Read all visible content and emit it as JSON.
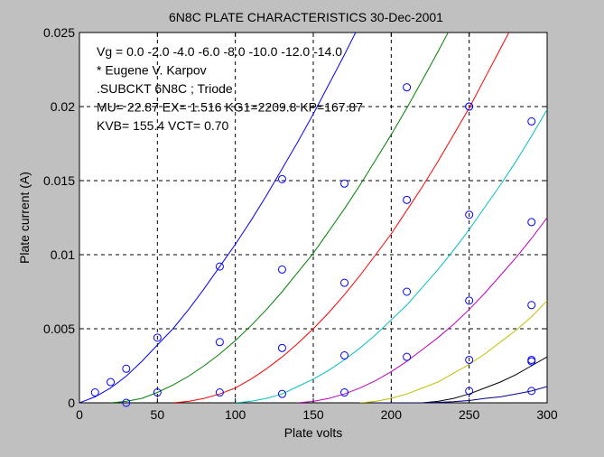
{
  "chart_data": {
    "type": "line",
    "title": "6N8C PLATE CHARACTERISTICS  30-Dec-2001",
    "xlabel": "Plate volts",
    "ylabel": "Plate current (A)",
    "xlim": [
      0,
      300
    ],
    "ylim": [
      0,
      0.025
    ],
    "xticks": [
      0,
      50,
      100,
      150,
      200,
      250,
      300
    ],
    "yticks": [
      0,
      0.005,
      0.01,
      0.015,
      0.02,
      0.025
    ],
    "xtick_labels": [
      "0",
      "50",
      "100",
      "150",
      "200",
      "250",
      "300"
    ],
    "ytick_labels": [
      "0",
      "0.005",
      "0.01",
      "0.015",
      "0.02",
      "0.025"
    ],
    "grid": true,
    "annotations": [
      "Vg =   0.0  -2.0  -4.0  -6.0  -8.0 -10.0 -12.0 -14.0",
      "* Eugene V. Karpov",
      ".SUBCKT 6N8C ;  Triode",
      "MU= 22.87  EX= 1.516  KG1=2209.8  KP=167.87",
      "KVB= 155.4  VCT=  0.70"
    ],
    "series": [
      {
        "color": "#0000ff",
        "x": [
          0,
          10,
          20,
          30,
          40,
          50,
          60,
          70,
          80,
          90,
          100,
          110,
          120,
          130,
          140,
          150,
          160,
          170,
          180,
          190
        ],
        "y": [
          0,
          0.0004,
          0.001,
          0.0018,
          0.0028,
          0.0039,
          0.005,
          0.0063,
          0.0077,
          0.0092,
          0.0107,
          0.0123,
          0.014,
          0.0158,
          0.0176,
          0.0195,
          0.0215,
          0.0235,
          0.0256,
          0.0275
        ]
      },
      {
        "color": "#008000",
        "x": [
          20,
          30,
          40,
          50,
          60,
          70,
          80,
          90,
          100,
          110,
          120,
          130,
          140,
          150,
          160,
          170,
          180,
          190,
          200,
          210,
          220,
          230,
          240
        ],
        "y": [
          0,
          0.0001,
          0.0003,
          0.0007,
          0.0012,
          0.0018,
          0.0025,
          0.0033,
          0.0042,
          0.0052,
          0.0063,
          0.0075,
          0.0088,
          0.0101,
          0.0116,
          0.0131,
          0.0147,
          0.0164,
          0.0181,
          0.0199,
          0.0218,
          0.0237,
          0.0257
        ]
      },
      {
        "color": "#ff0000",
        "x": [
          60,
          70,
          80,
          90,
          100,
          110,
          120,
          130,
          140,
          150,
          160,
          170,
          180,
          190,
          200,
          210,
          220,
          230,
          240,
          250,
          260,
          270,
          280
        ],
        "y": [
          0,
          0.0001,
          0.0003,
          0.0006,
          0.001,
          0.0016,
          0.0023,
          0.0031,
          0.004,
          0.005,
          0.0061,
          0.0073,
          0.0086,
          0.01,
          0.0114,
          0.013,
          0.0146,
          0.0163,
          0.0181,
          0.0199,
          0.0219,
          0.0239,
          0.0259
        ]
      },
      {
        "color": "#00bfbf",
        "x": [
          100,
          110,
          120,
          130,
          140,
          150,
          160,
          170,
          180,
          190,
          200,
          210,
          220,
          230,
          240,
          250,
          260,
          270,
          280,
          290,
          300
        ],
        "y": [
          0,
          0.0001,
          0.0003,
          0.0006,
          0.0011,
          0.0016,
          0.0022,
          0.0029,
          0.0037,
          0.0046,
          0.0056,
          0.0066,
          0.0078,
          0.009,
          0.0103,
          0.0117,
          0.0132,
          0.0147,
          0.0163,
          0.018,
          0.0198
        ]
      },
      {
        "color": "#bf00bf",
        "x": [
          140,
          150,
          160,
          170,
          180,
          190,
          200,
          210,
          220,
          230,
          240,
          250,
          260,
          270,
          280,
          290,
          300
        ],
        "y": [
          0,
          0.0001,
          0.0003,
          0.0006,
          0.001,
          0.0015,
          0.0021,
          0.0028,
          0.0036,
          0.0044,
          0.0053,
          0.0063,
          0.0074,
          0.0086,
          0.0098,
          0.0111,
          0.0125
        ]
      },
      {
        "color": "#bfbf00",
        "x": [
          180,
          190,
          200,
          210,
          220,
          230,
          240,
          250,
          260,
          270,
          280,
          290,
          300
        ],
        "y": [
          0,
          0.0001,
          0.0003,
          0.0006,
          0.001,
          0.0014,
          0.002,
          0.0026,
          0.0033,
          0.0041,
          0.0049,
          0.0058,
          0.0069
        ]
      },
      {
        "color": "#000000",
        "x": [
          220,
          230,
          240,
          250,
          260,
          270,
          280,
          290,
          300
        ],
        "y": [
          0,
          0.0001,
          0.0003,
          0.0006,
          0.001,
          0.0014,
          0.0019,
          0.0025,
          0.0031
        ]
      },
      {
        "color": "#00008b",
        "x": [
          190,
          200,
          210,
          220,
          230,
          240,
          250,
          260,
          270,
          280,
          290,
          300
        ],
        "y": [
          0,
          0,
          0,
          0,
          3e-05,
          8e-05,
          0.00015,
          0.0003,
          0.0004,
          0.0006,
          0.0008,
          0.0011
        ]
      }
    ],
    "measured_points": {
      "color": "#0000ff",
      "x": [
        10,
        20,
        30,
        50,
        90,
        130,
        30,
        50,
        90,
        130,
        170,
        210,
        250,
        90,
        130,
        170,
        210,
        250,
        290,
        130,
        170,
        210,
        250,
        290,
        170,
        210,
        250,
        290,
        250,
        290,
        250,
        290,
        290
      ],
      "y": [
        0.0007,
        0.0014,
        0.0023,
        0.0044,
        0.0092,
        0.0151,
        0.0,
        0.0007,
        0.0041,
        0.009,
        0.0148,
        0.0213,
        0.02,
        0.0007,
        0.0037,
        0.0081,
        0.0137,
        0.02,
        0.019,
        0.0006,
        0.0032,
        0.0075,
        0.0127,
        0.0122,
        0.0007,
        0.0031,
        0.0069,
        0.0066,
        0.0008,
        0.0029,
        0.0029,
        0.0028,
        0.0008
      ]
    }
  }
}
